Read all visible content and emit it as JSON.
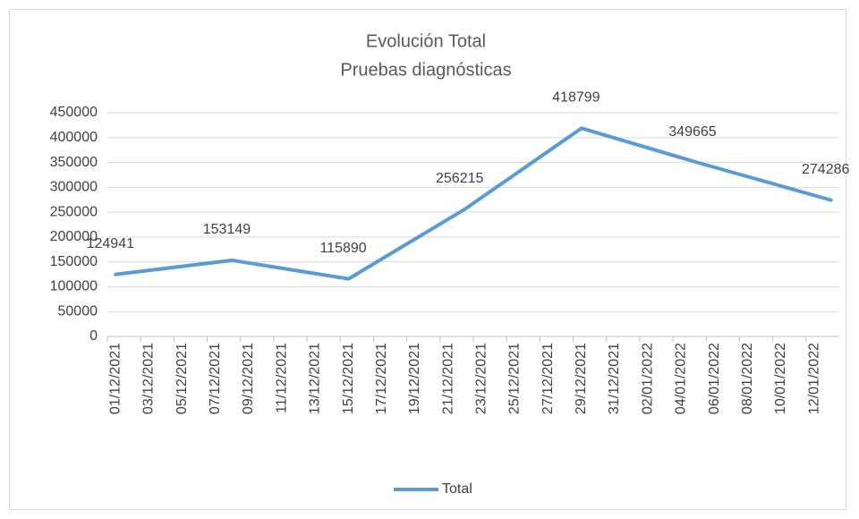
{
  "chart_data": {
    "type": "line",
    "title": "Evolución Total",
    "subtitle": "Pruebas diagnósticas",
    "x": [
      "01/12/2021",
      "08/12/2021",
      "15/12/2021",
      "22/12/2021",
      "29/12/2021",
      "05/01/2022",
      "13/01/2022"
    ],
    "series": [
      {
        "name": "Total",
        "color": "#5b9bd5",
        "values": [
          124941,
          153149,
          115890,
          256215,
          418799,
          349665,
          274286
        ]
      }
    ],
    "xlim": [
      "01/12/2021",
      "13/01/2022"
    ],
    "xticks": [
      "01/12/2021",
      "03/12/2021",
      "05/12/2021",
      "07/12/2021",
      "09/12/2021",
      "11/12/2021",
      "13/12/2021",
      "15/12/2021",
      "17/12/2021",
      "19/12/2021",
      "21/12/2021",
      "23/12/2021",
      "25/12/2021",
      "27/12/2021",
      "29/12/2021",
      "31/12/2021",
      "02/01/2022",
      "04/01/2022",
      "06/01/2022",
      "08/01/2022",
      "10/01/2022",
      "12/01/2022"
    ],
    "ylim": [
      0,
      450000
    ],
    "yticks": [
      0,
      50000,
      100000,
      150000,
      200000,
      250000,
      300000,
      350000,
      400000,
      450000
    ],
    "grid": true,
    "legend": "bottom"
  }
}
